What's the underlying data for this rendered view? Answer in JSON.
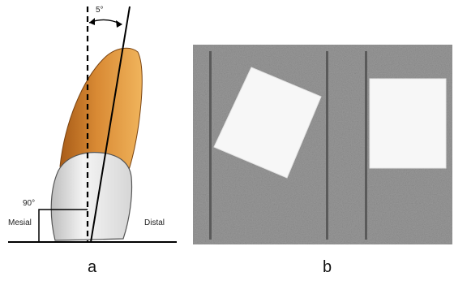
{
  "panel_a": {
    "angle_label": "5°",
    "right_angle_label": "90°",
    "left_side_label": "Mesial",
    "right_side_label": "Distal",
    "caption": "a"
  },
  "panel_b": {
    "caption": "b"
  },
  "colors": {
    "root_dark": "#b86a22",
    "root_light": "#e9a54a",
    "crown_light": "#f1f1f1",
    "crown_shadow": "#b9b9b9",
    "noise_background": "#8a8a8a",
    "white_square": "#f7f7f7"
  }
}
